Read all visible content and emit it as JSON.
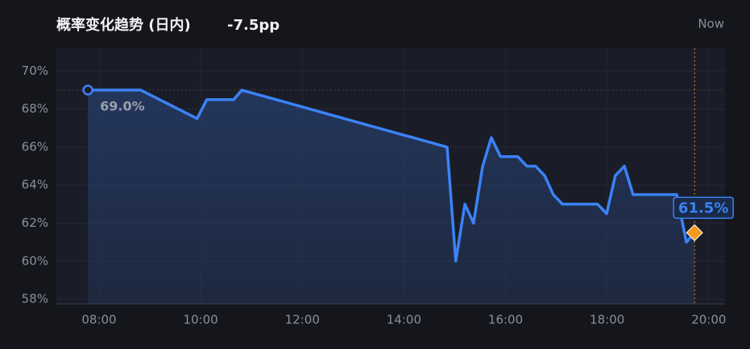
{
  "chart_data": {
    "type": "line",
    "title": "概率变化趋势 (日内)",
    "change": "-7.5pp",
    "now_label": "Now",
    "x": [
      7.78,
      8.82,
      9.93,
      10.12,
      10.65,
      10.81,
      14.85,
      15.02,
      15.2,
      15.37,
      15.55,
      15.72,
      15.9,
      16.24,
      16.42,
      16.59,
      16.77,
      16.94,
      17.12,
      17.81,
      17.99,
      18.16,
      18.34,
      18.51,
      19.37,
      19.56,
      19.72
    ],
    "series": [
      {
        "name": "概率",
        "color": "#3b82f6",
        "values": [
          69.0,
          69.0,
          67.5,
          68.5,
          68.5,
          69.0,
          66.0,
          60.0,
          63.0,
          62.0,
          65.0,
          66.5,
          65.5,
          65.5,
          65.0,
          65.0,
          64.5,
          63.5,
          63.0,
          63.0,
          62.5,
          64.5,
          65.0,
          63.5,
          63.5,
          61.0,
          61.5
        ],
        "value_labels": [
          "69.0%",
          null,
          null,
          null,
          null,
          null,
          null,
          null,
          null,
          null,
          null,
          null,
          null,
          null,
          null,
          null,
          null,
          null,
          null,
          null,
          null,
          null,
          null,
          null,
          null,
          null,
          "61.5%"
        ]
      }
    ],
    "xlim": [
      7.16,
      20.32
    ],
    "ylim": [
      57.75,
      71.2
    ],
    "xticks": [
      {
        "value": 8,
        "label": "08:00"
      },
      {
        "value": 10,
        "label": "10:00"
      },
      {
        "value": 12,
        "label": "12:00"
      },
      {
        "value": 14,
        "label": "14:00"
      },
      {
        "value": 16,
        "label": "16:00"
      },
      {
        "value": 18,
        "label": "18:00"
      },
      {
        "value": 20,
        "label": "20:00"
      }
    ],
    "yticks": [
      {
        "value": 58,
        "label": "58%"
      },
      {
        "value": 60,
        "label": "60%"
      },
      {
        "value": 62,
        "label": "62%"
      },
      {
        "value": 64,
        "label": "64%"
      },
      {
        "value": 66,
        "label": "66%"
      },
      {
        "value": 68,
        "label": "68%"
      },
      {
        "value": 70,
        "label": "70%"
      }
    ],
    "grid": true
  }
}
